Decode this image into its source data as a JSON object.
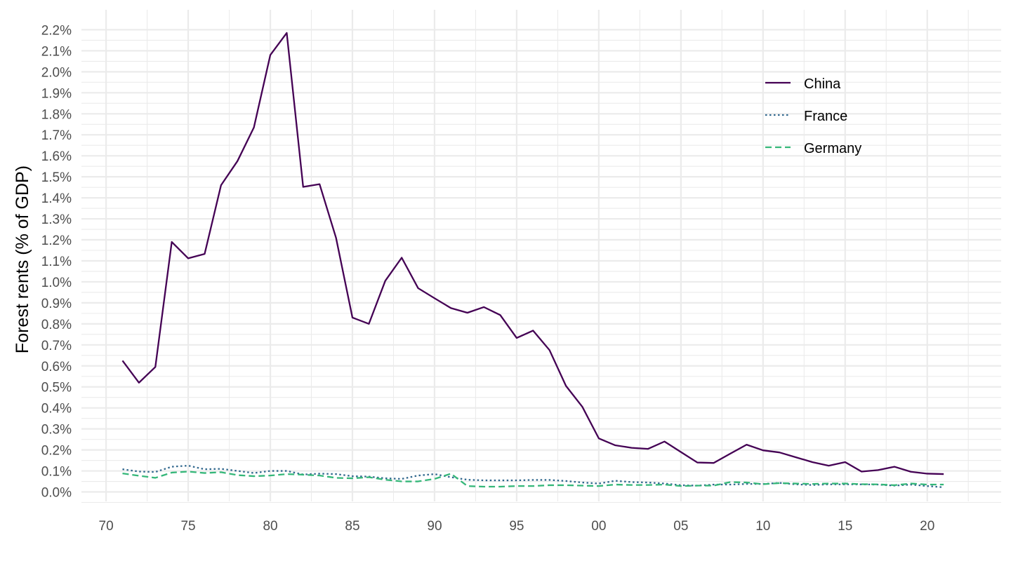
{
  "chart_data": {
    "type": "line",
    "title": "",
    "xlabel": "",
    "ylabel": "Forest rents (% of GDP)",
    "x": [
      1971,
      1972,
      1973,
      1974,
      1975,
      1976,
      1977,
      1978,
      1979,
      1980,
      1981,
      1982,
      1983,
      1984,
      1985,
      1986,
      1987,
      1988,
      1989,
      1990,
      1991,
      1992,
      1993,
      1994,
      1995,
      1996,
      1997,
      1998,
      1999,
      2000,
      2001,
      2002,
      2003,
      2004,
      2005,
      2006,
      2007,
      2008,
      2009,
      2010,
      2011,
      2012,
      2013,
      2014,
      2015,
      2016,
      2017,
      2018,
      2019,
      2020,
      2021
    ],
    "series": [
      {
        "name": "China",
        "color": "#440154",
        "dash": "solid",
        "values": [
          0.625,
          0.52,
          0.595,
          1.19,
          1.112,
          1.133,
          1.46,
          1.575,
          1.735,
          2.08,
          2.185,
          1.452,
          1.465,
          1.21,
          0.83,
          0.8,
          1.005,
          1.115,
          0.97,
          0.922,
          0.875,
          0.853,
          0.88,
          0.842,
          0.733,
          0.768,
          0.675,
          0.505,
          0.405,
          0.255,
          0.222,
          0.21,
          0.205,
          0.24,
          0.19,
          0.14,
          0.138,
          0.182,
          0.225,
          0.198,
          0.188,
          0.165,
          0.142,
          0.125,
          0.142,
          0.097,
          0.104,
          0.12,
          0.096,
          0.087,
          0.085
        ]
      },
      {
        "name": "France",
        "color": "#31688e",
        "dash": "dotted",
        "values": [
          0.108,
          0.097,
          0.095,
          0.12,
          0.125,
          0.108,
          0.11,
          0.1,
          0.09,
          0.1,
          0.1,
          0.083,
          0.087,
          0.085,
          0.075,
          0.073,
          0.065,
          0.062,
          0.078,
          0.085,
          0.07,
          0.058,
          0.055,
          0.055,
          0.055,
          0.057,
          0.057,
          0.052,
          0.045,
          0.04,
          0.053,
          0.047,
          0.045,
          0.04,
          0.032,
          0.03,
          0.035,
          0.035,
          0.038,
          0.038,
          0.043,
          0.036,
          0.033,
          0.036,
          0.036,
          0.036,
          0.035,
          0.03,
          0.035,
          0.028,
          0.022
        ]
      },
      {
        "name": "Germany",
        "color": "#35b779",
        "dash": "dashed",
        "values": [
          0.088,
          0.077,
          0.067,
          0.092,
          0.097,
          0.09,
          0.094,
          0.08,
          0.075,
          0.078,
          0.085,
          0.082,
          0.078,
          0.067,
          0.065,
          0.07,
          0.058,
          0.05,
          0.05,
          0.062,
          0.087,
          0.028,
          0.025,
          0.025,
          0.028,
          0.028,
          0.032,
          0.032,
          0.03,
          0.028,
          0.035,
          0.033,
          0.033,
          0.035,
          0.028,
          0.03,
          0.03,
          0.047,
          0.045,
          0.037,
          0.042,
          0.04,
          0.038,
          0.04,
          0.04,
          0.037,
          0.036,
          0.032,
          0.04,
          0.035,
          0.035
        ]
      }
    ],
    "xlim": [
      1968.5,
      2024.5
    ],
    "ylim": [
      -0.045,
      2.295
    ],
    "x_ticks": [
      1970,
      1975,
      1980,
      1985,
      1990,
      1995,
      2000,
      2005,
      2010,
      2015,
      2020
    ],
    "x_tick_labels": [
      "70",
      "75",
      "80",
      "85",
      "90",
      "95",
      "00",
      "05",
      "10",
      "15",
      "20"
    ],
    "y_ticks": [
      0,
      0.1,
      0.2,
      0.3,
      0.4,
      0.5,
      0.6,
      0.7,
      0.8,
      0.9,
      1.0,
      1.1,
      1.2,
      1.3,
      1.4,
      1.5,
      1.6,
      1.7,
      1.8,
      1.9,
      2.0,
      2.1,
      2.2
    ],
    "y_tick_labels": [
      "0.0%",
      "0.1%",
      "0.2%",
      "0.3%",
      "0.4%",
      "0.5%",
      "0.6%",
      "0.7%",
      "0.8%",
      "0.9%",
      "1.0%",
      "1.1%",
      "1.2%",
      "1.3%",
      "1.4%",
      "1.5%",
      "1.6%",
      "1.7%",
      "1.8%",
      "1.9%",
      "2.0%",
      "2.1%",
      "2.2%"
    ],
    "grid": true,
    "legend_position": "top-right",
    "grid_color": "#ebebeb",
    "tick_label_color": "#4d4d4d"
  }
}
